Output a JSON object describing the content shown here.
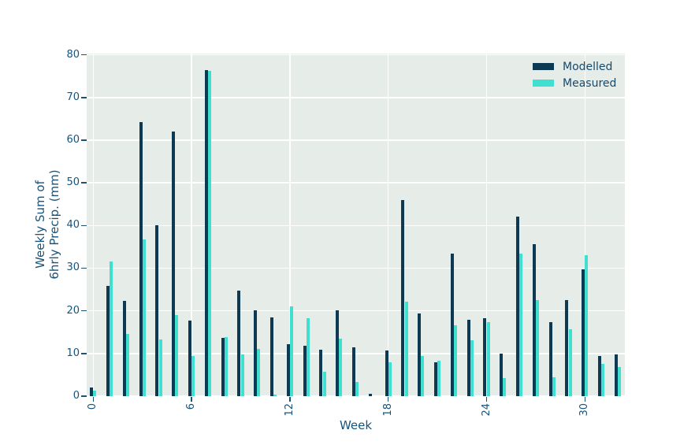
{
  "figure": {
    "background": "#ffffff",
    "plot_background": "#e6ece8",
    "grid_color": "#ffffff",
    "text_color": "#17537a"
  },
  "legend": {
    "items": [
      {
        "label": "Modelled",
        "color": "#0d3a52"
      },
      {
        "label": "Measured",
        "color": "#40e0d0"
      }
    ]
  },
  "chart_data": {
    "type": "bar",
    "title": "",
    "xlabel": "Week",
    "ylabel": "Weekly Sum of\n6hrly Precip. (mm)",
    "ylabel_lines": [
      "Weekly Sum of",
      "6hrly Precip. (mm)"
    ],
    "categories": [
      0,
      1,
      2,
      3,
      4,
      5,
      6,
      7,
      8,
      9,
      10,
      11,
      12,
      13,
      14,
      15,
      16,
      17,
      18,
      19,
      20,
      21,
      22,
      23,
      24,
      25,
      26,
      27,
      28,
      29,
      30,
      31,
      32
    ],
    "series": [
      {
        "name": "Modelled",
        "color": "#0d3a52",
        "values": [
          2.0,
          25.8,
          22.3,
          64.2,
          40.1,
          62.0,
          17.8,
          76.5,
          13.7,
          24.8,
          20.2,
          18.4,
          12.2,
          11.8,
          10.8,
          20.2,
          11.5,
          0.6,
          10.7,
          46.0,
          19.3,
          7.9,
          33.5,
          17.9,
          18.3,
          10.0,
          42.0,
          35.6,
          17.4,
          22.5,
          29.8,
          9.5,
          9.8
        ]
      },
      {
        "name": "Measured",
        "color": "#40e0d0",
        "values": [
          1.3,
          31.5,
          14.6,
          36.7,
          13.3,
          19.0,
          9.4,
          76.3,
          13.8,
          9.7,
          11.0,
          0.4,
          21.1,
          18.3,
          5.7,
          13.5,
          3.4,
          0.0,
          8.0,
          22.2,
          9.5,
          8.3,
          16.7,
          13.1,
          17.4,
          4.3,
          33.4,
          22.6,
          4.4,
          15.6,
          33.1,
          7.5,
          6.8
        ]
      }
    ],
    "xticks": [
      0,
      6,
      12,
      18,
      24,
      30
    ],
    "yticks": [
      0,
      10,
      20,
      30,
      40,
      50,
      60,
      70,
      80
    ],
    "ylim": [
      0,
      80.3
    ],
    "grid": true,
    "legend_position": "upper right"
  }
}
